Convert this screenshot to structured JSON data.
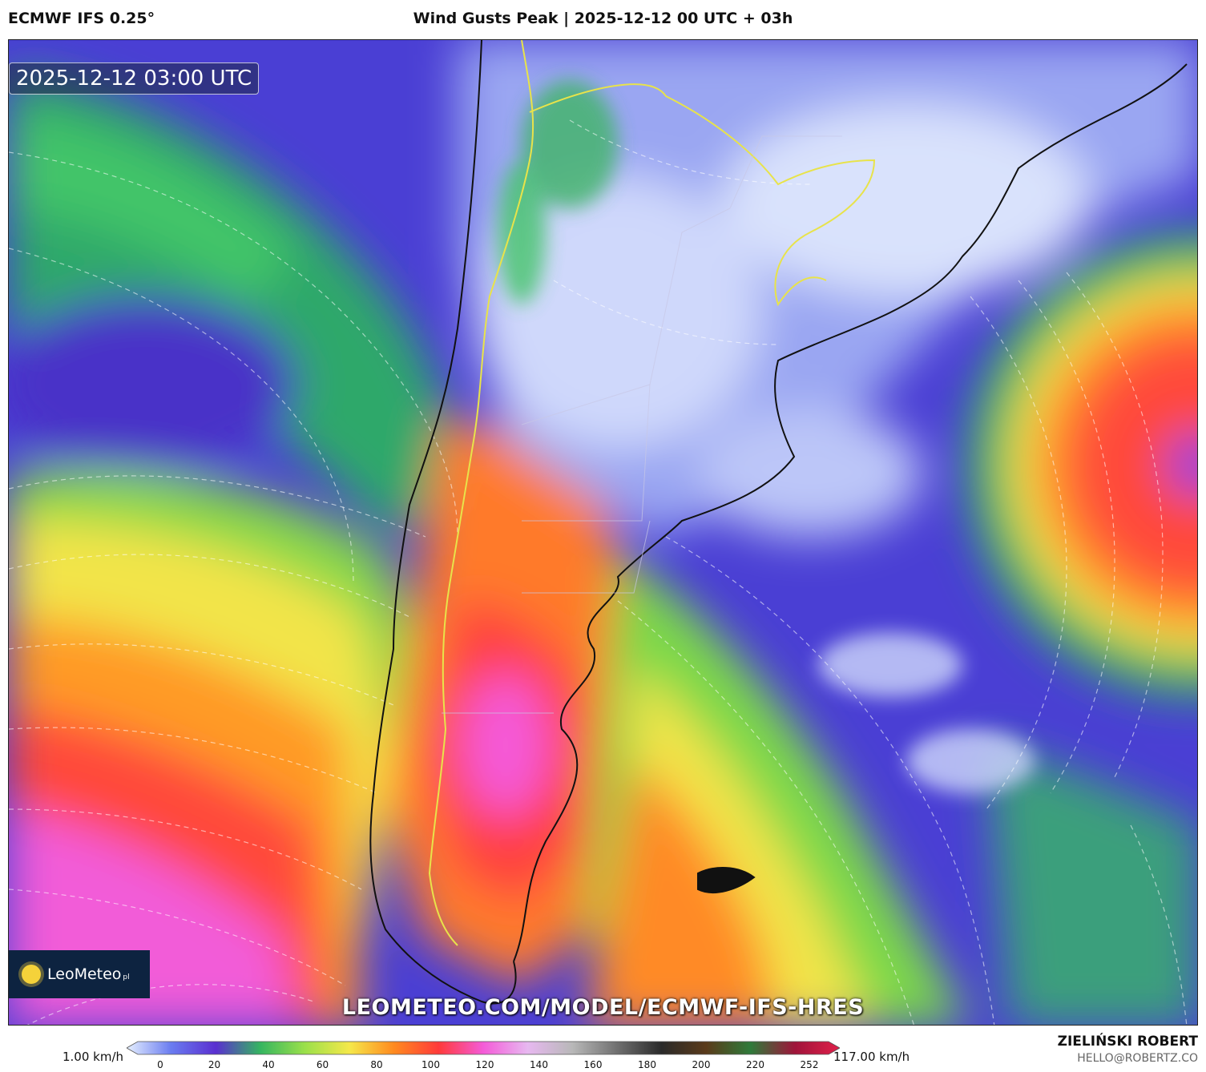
{
  "header": {
    "model": "ECMWF IFS 0.25°",
    "title": "Wind Gusts Peak | 2025-12-12 00 UTC + 03h"
  },
  "map": {
    "timestamp": "2025-12-12 03:00 UTC",
    "logo_text": "LeoMeteo",
    "logo_suffix": "pl",
    "watermark": "LEOMETEO.COM/MODEL/ECMWF-IFS-HRES"
  },
  "colorbar": {
    "min_label": "1.00 km/h",
    "max_label": "117.00 km/h",
    "ticks": [
      "0",
      "20",
      "40",
      "60",
      "80",
      "100",
      "120",
      "140",
      "160",
      "180",
      "200",
      "220",
      "252"
    ],
    "colors": [
      "#e6f0ff",
      "#6a7cf0",
      "#5a2fd0",
      "#35b560",
      "#9be04a",
      "#f5e84a",
      "#ff8a1f",
      "#ff3a3a",
      "#f45bd8",
      "#e7b8f0",
      "#b8b8b8",
      "#707070",
      "#2a2a2a",
      "#5a3a1a",
      "#2f7a3a",
      "#a0143a",
      "#e0204a"
    ]
  },
  "credits": {
    "name": "ZIELIŃSKI ROBERT",
    "email": "HELLO@ROBERTZ.CO"
  }
}
